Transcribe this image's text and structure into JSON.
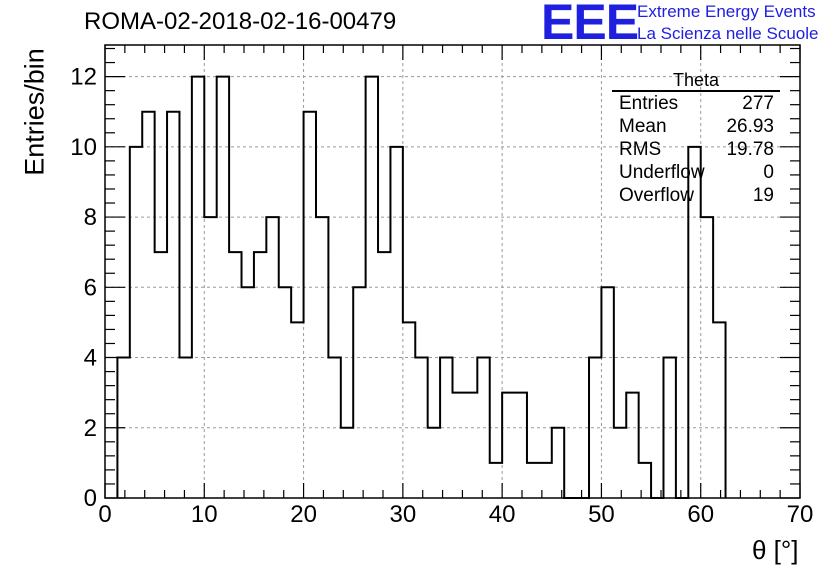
{
  "header": {
    "run_title": "ROMA-02-2018-02-16-00479",
    "logo_text": "EEE",
    "logo_line1": "Extreme Energy Events",
    "logo_line2": "La Scienza nelle Scuole",
    "logo_color": "#1f1fe0"
  },
  "stats_box": {
    "title": "Theta",
    "rows": [
      {
        "label": "Entries",
        "value": "277"
      },
      {
        "label": "Mean",
        "value": "26.93"
      },
      {
        "label": "RMS",
        "value": "19.78"
      },
      {
        "label": "Underflow",
        "value": "0"
      },
      {
        "label": "Overflow",
        "value": "19"
      }
    ]
  },
  "chart_data": {
    "type": "bar",
    "histogram": true,
    "xlabel": "θ [°]",
    "ylabel": "Entries/bin",
    "xlim": [
      0,
      70
    ],
    "ylim": [
      0,
      12.9
    ],
    "bin_width": 1.25,
    "bin_edges_start": 1.25,
    "x_ticks": [
      0,
      10,
      20,
      30,
      40,
      50,
      60,
      70
    ],
    "y_ticks": [
      0,
      2,
      4,
      6,
      8,
      10,
      12
    ],
    "grid": true,
    "values": [
      4,
      10,
      11,
      7,
      11,
      4,
      12,
      8,
      12,
      7,
      6,
      7,
      8,
      6,
      5,
      11,
      8,
      4,
      2,
      6,
      12,
      7,
      10,
      5,
      4,
      2,
      4,
      3,
      3,
      4,
      1,
      3,
      3,
      1,
      1,
      2,
      0,
      0,
      4,
      6,
      2,
      3,
      1,
      0,
      4,
      0,
      10,
      8,
      5
    ]
  }
}
